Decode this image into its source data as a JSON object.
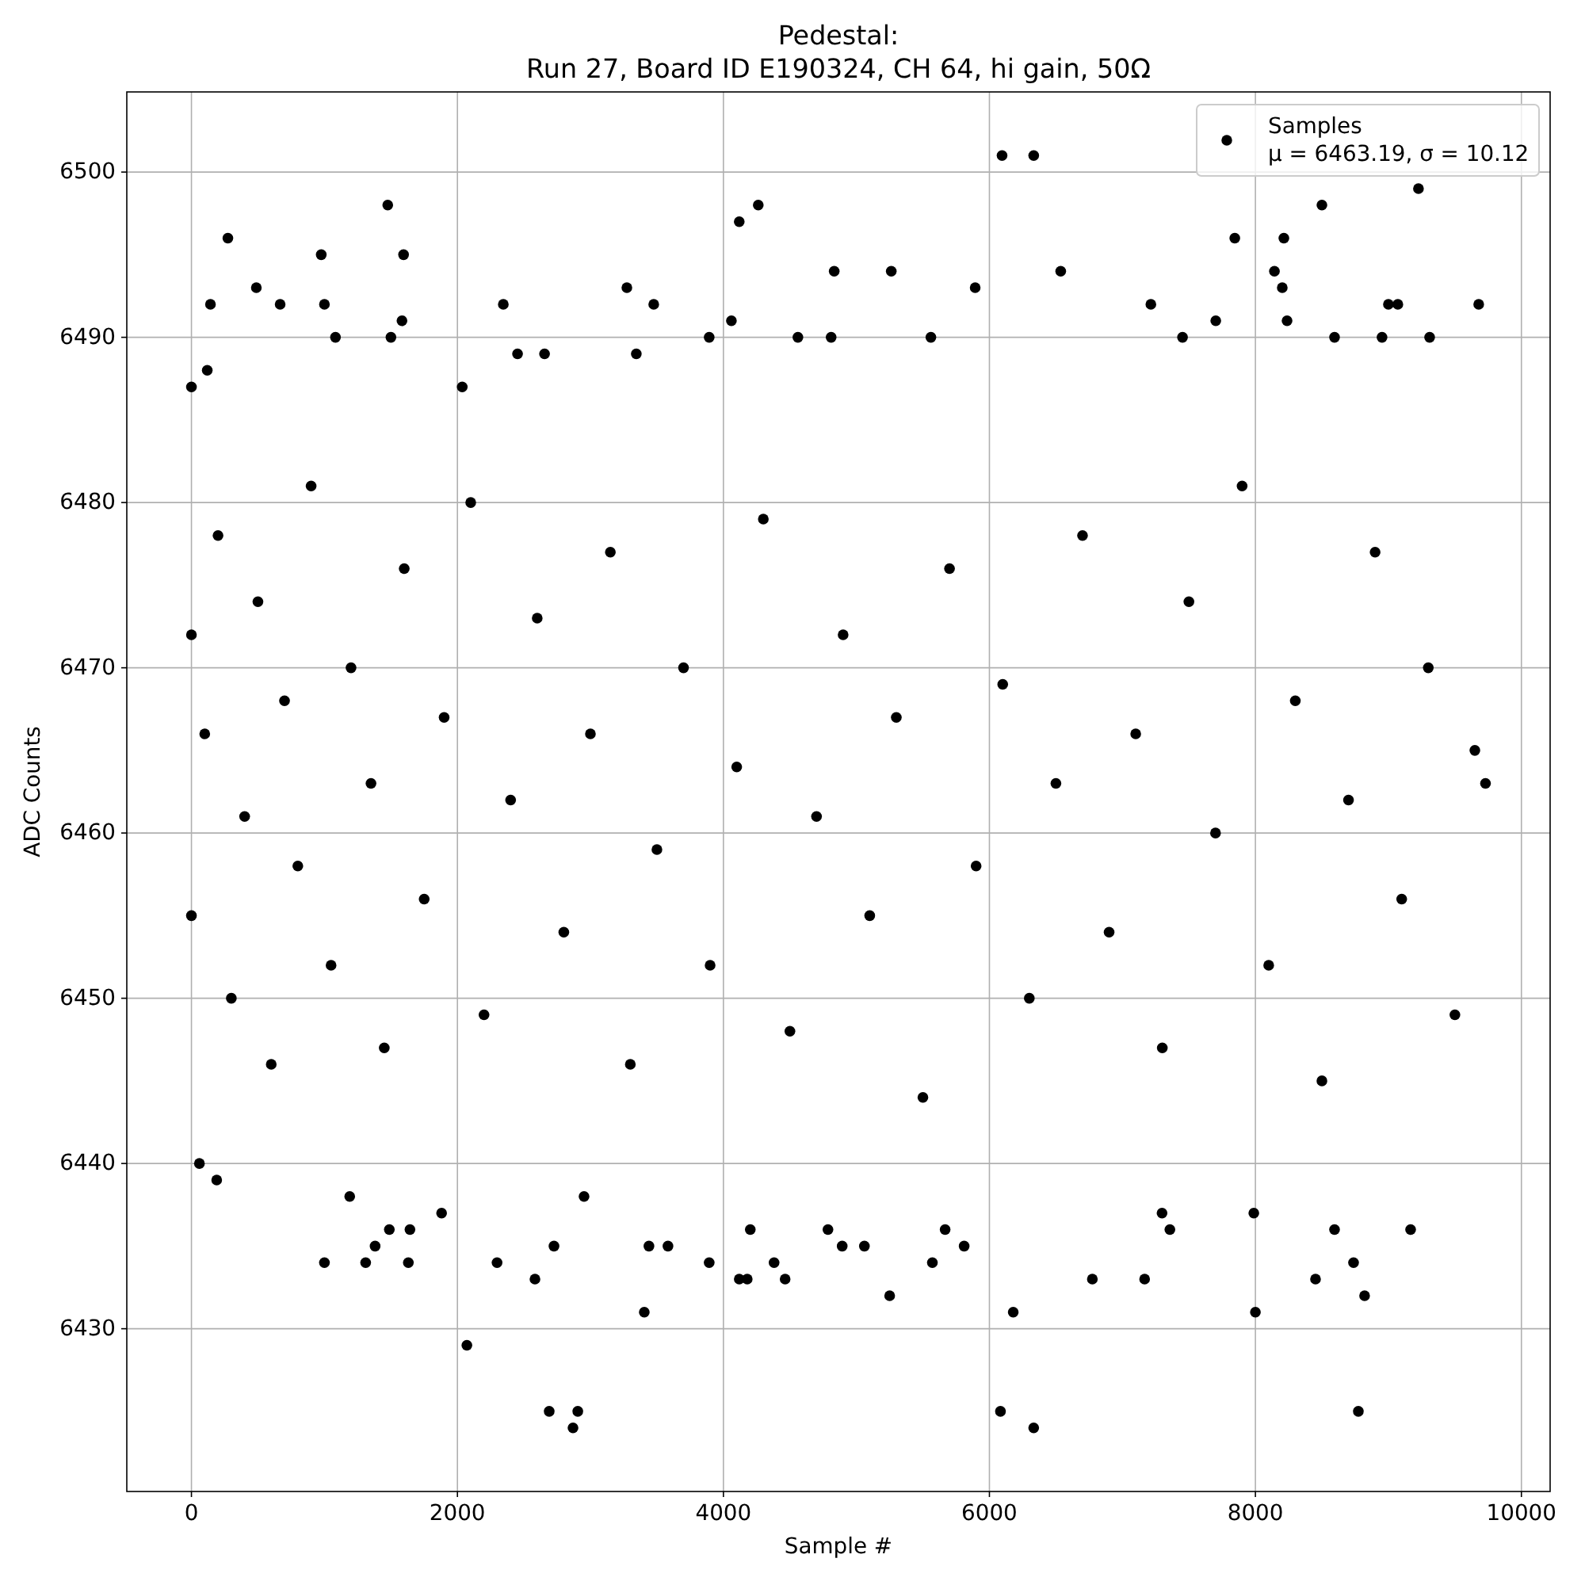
{
  "chart_data": {
    "type": "scatter",
    "title": "Pedestal:",
    "subtitle": "Run 27, Board ID E190324, CH 64, hi gain, 50Ω",
    "xlabel": "Sample #",
    "ylabel": "ADC Counts",
    "annotations": [
      "μ = 6463.19, σ = 10.12"
    ],
    "xlim": [
      -486,
      10216
    ],
    "ylim": [
      6420.15,
      6504.85
    ],
    "xticks": [
      0,
      2000,
      4000,
      6000,
      8000,
      10000
    ],
    "yticks": [
      6430,
      6440,
      6450,
      6460,
      6470,
      6480,
      6490,
      6500
    ],
    "grid": true,
    "legend": "top right",
    "marker": "circle",
    "series": [
      {
        "name": "Samples",
        "color": "#000000",
        "x": [
          0,
          119,
          143,
          274,
          488,
          667,
          976,
          1000,
          1083,
          1476,
          1500,
          1583,
          1595,
          2036,
          2345,
          2452,
          2655,
          3274,
          3345,
          3476,
          3893,
          4060,
          4119,
          4262,
          4560,
          4810,
          4833,
          5262,
          5560,
          5893,
          6095,
          6333,
          6536,
          7214,
          7452,
          7702,
          7845,
          8143,
          8202,
          8214,
          8238,
          8500,
          8595,
          8952,
          9000,
          9071,
          9226,
          9310,
          9679,
          60,
          190,
          1000,
          1190,
          1310,
          1381,
          1488,
          1631,
          1643,
          1881,
          2071,
          2298,
          2583,
          2690,
          2726,
          2869,
          2905,
          2952,
          3405,
          3440,
          3583,
          3893,
          4119,
          4179,
          4202,
          4381,
          4464,
          4786,
          4893,
          5060,
          5250,
          5571,
          5667,
          5810,
          6083,
          6179,
          6333,
          6774,
          7167,
          7298,
          7357,
          7988,
          8000,
          8452,
          8595,
          8738,
          8774,
          8821,
          9167,
          0,
          0,
          100,
          200,
          300,
          400,
          500,
          600,
          700,
          800,
          900,
          1050,
          1200,
          1350,
          1450,
          1600,
          1750,
          1900,
          2100,
          2200,
          2400,
          2600,
          2800,
          3000,
          3150,
          3300,
          3500,
          3700,
          3900,
          4100,
          4300,
          4500,
          4700,
          4900,
          5100,
          5300,
          5500,
          5700,
          5900,
          6100,
          6300,
          6500,
          6700,
          6900,
          7100,
          7300,
          7500,
          7700,
          7900,
          8100,
          8300,
          8500,
          8700,
          8900,
          9100,
          9300,
          9500,
          9650,
          9730
        ],
        "values": [
          6487,
          6488,
          6492,
          6496,
          6493,
          6492,
          6495,
          6492,
          6490,
          6498,
          6490,
          6491,
          6495,
          6487,
          6492,
          6489,
          6489,
          6493,
          6489,
          6492,
          6490,
          6491,
          6497,
          6498,
          6490,
          6490,
          6494,
          6494,
          6490,
          6493,
          6501,
          6501,
          6494,
          6492,
          6490,
          6491,
          6496,
          6494,
          6493,
          6496,
          6491,
          6498,
          6490,
          6490,
          6492,
          6492,
          6499,
          6490,
          6492,
          6440,
          6439,
          6434,
          6438,
          6434,
          6435,
          6436,
          6434,
          6436,
          6437,
          6429,
          6434,
          6433,
          6425,
          6435,
          6424,
          6425,
          6438,
          6431,
          6435,
          6435,
          6434,
          6433,
          6433,
          6436,
          6434,
          6433,
          6436,
          6435,
          6435,
          6432,
          6434,
          6436,
          6435,
          6425,
          6431,
          6424,
          6433,
          6433,
          6437,
          6436,
          6437,
          6431,
          6433,
          6436,
          6434,
          6425,
          6432,
          6436,
          6472,
          6455,
          6466,
          6478,
          6450,
          6461,
          6474,
          6446,
          6468,
          6458,
          6481,
          6452,
          6470,
          6463,
          6447,
          6476,
          6456,
          6467,
          6480,
          6449,
          6462,
          6473,
          6454,
          6466,
          6477,
          6446,
          6459,
          6470,
          6452,
          6464,
          6479,
          6448,
          6461,
          6472,
          6455,
          6467,
          6444,
          6476,
          6458,
          6469,
          6450,
          6463,
          6478,
          6454,
          6466,
          6447,
          6474,
          6460,
          6481,
          6452,
          6468,
          6445,
          6462,
          6477,
          6456,
          6470,
          6449,
          6465,
          6463
        ]
      }
    ]
  }
}
